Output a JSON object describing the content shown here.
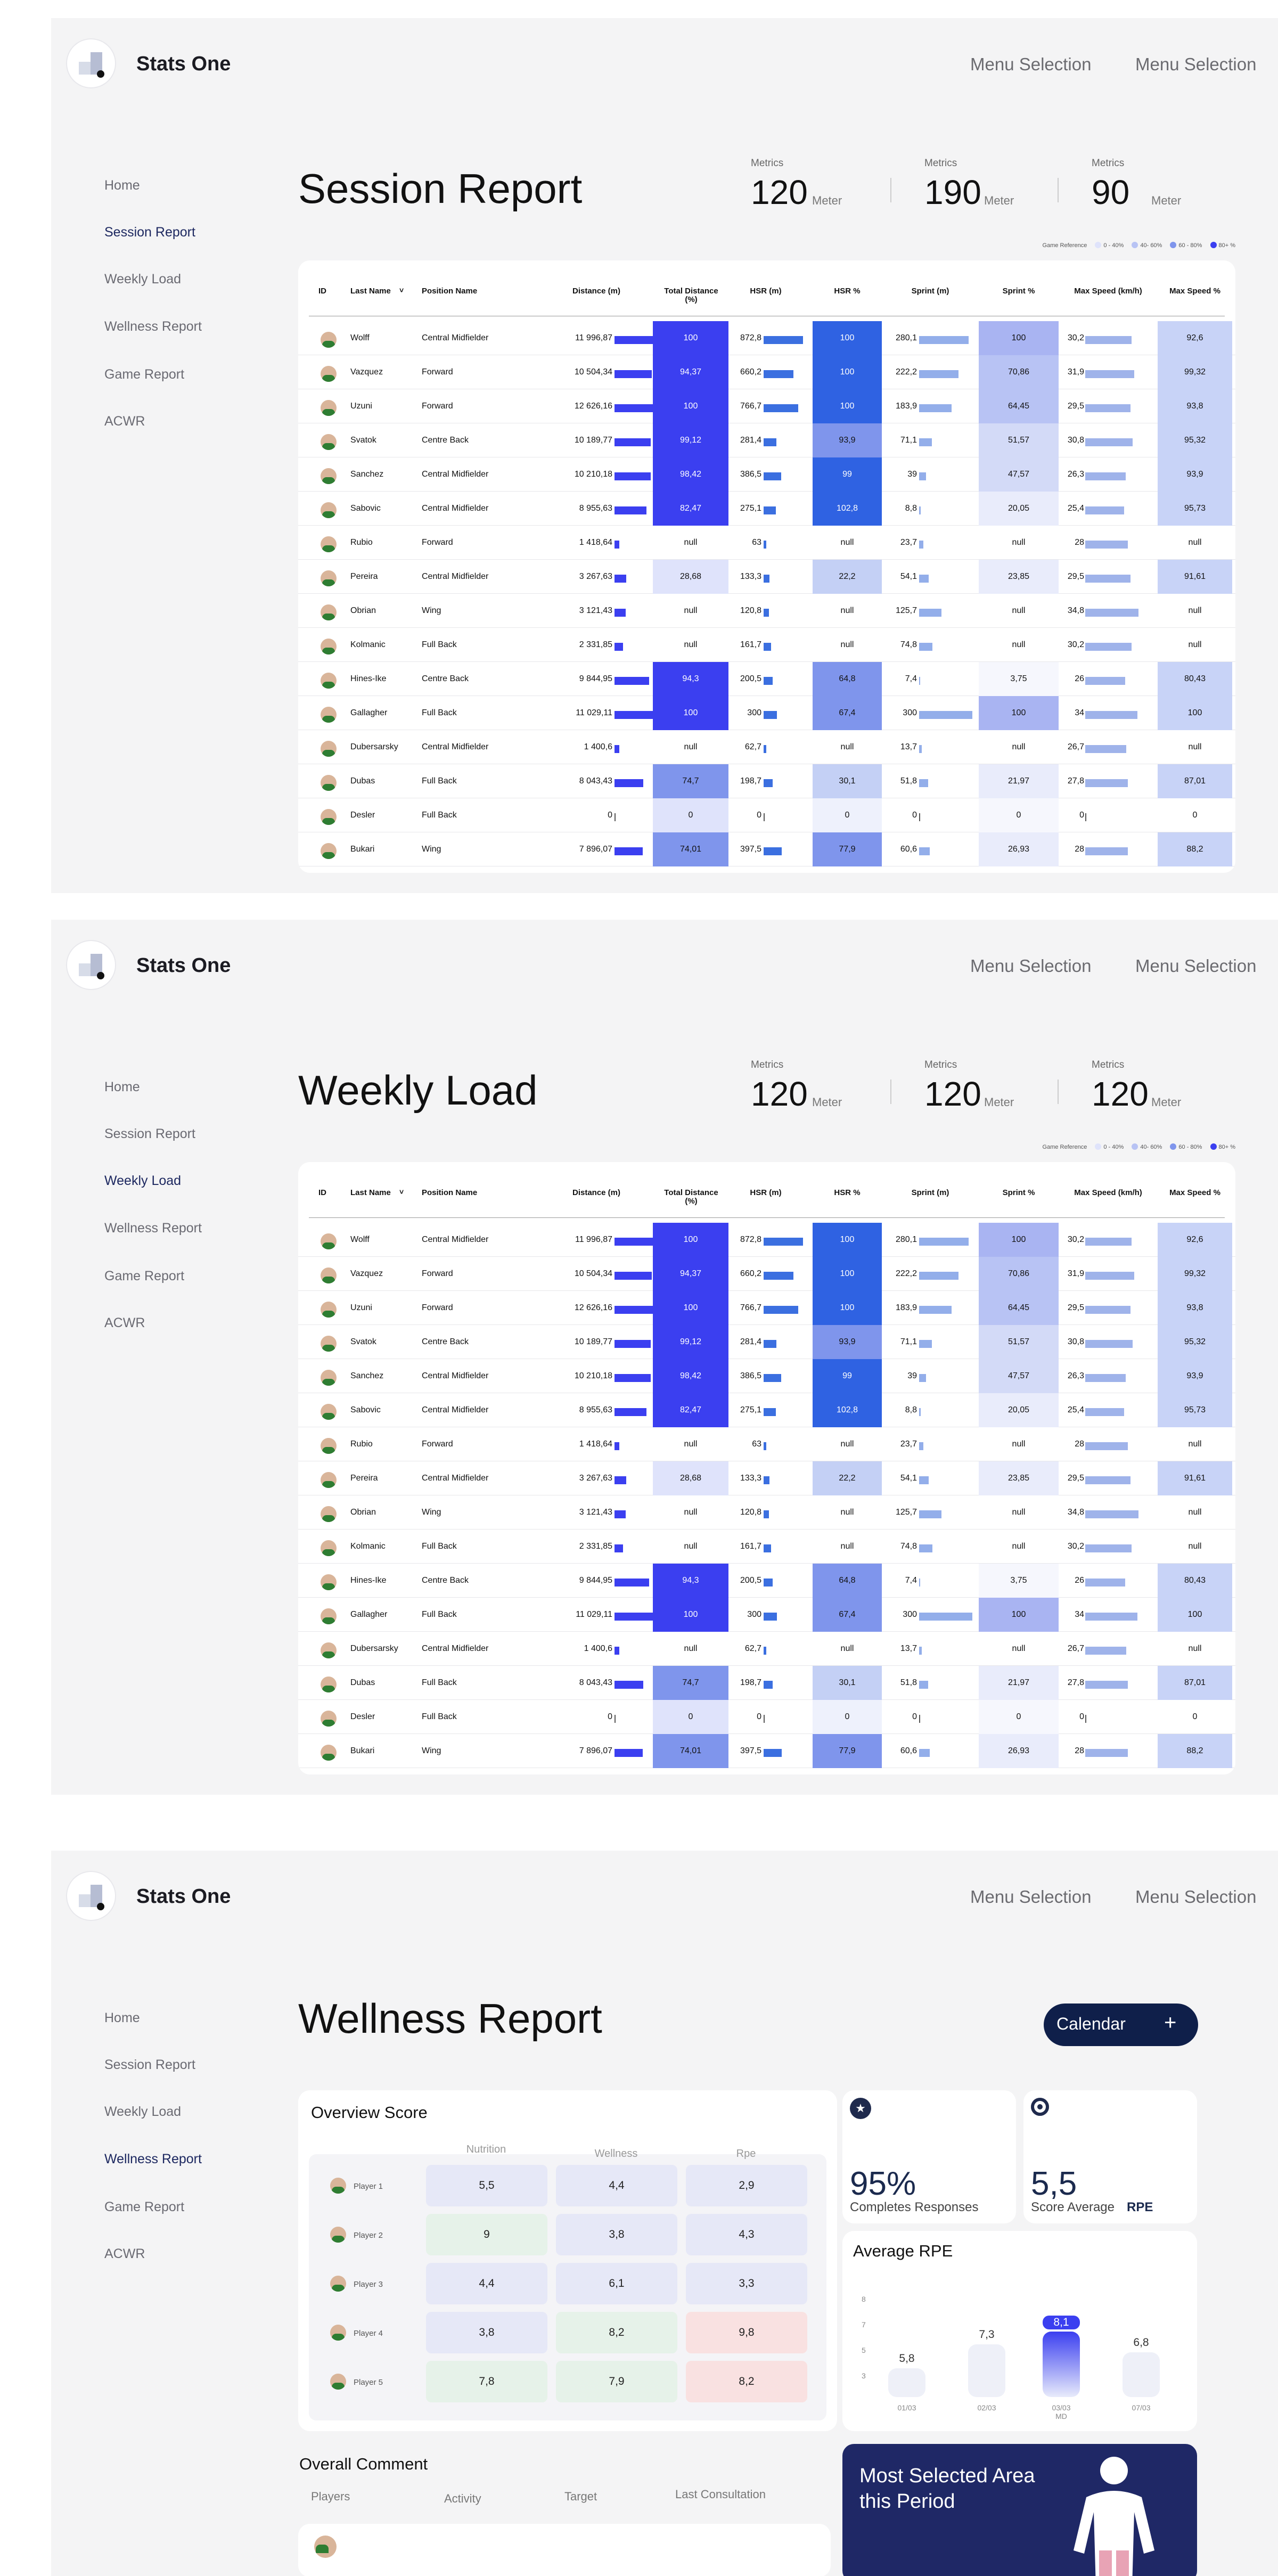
{
  "app": {
    "brand": "Stats One",
    "menu": [
      "Menu Selection",
      "Menu Selection"
    ]
  },
  "nav": [
    "Home",
    "Session Report",
    "Weekly Load",
    "Wellness Report",
    "Game Report",
    "ACWR"
  ],
  "legend": {
    "title": "Game Reference",
    "items": [
      {
        "label": "0 - 40%",
        "color": "#dfe3fb"
      },
      {
        "label": "40- 60%",
        "color": "#b8c3f4"
      },
      {
        "label": "60 - 80%",
        "color": "#7f95ec"
      },
      {
        "label": "80+ %",
        "color": "#3b3ff0"
      }
    ]
  },
  "columns": [
    "ID",
    "Last Name",
    "Position Name",
    "Distance (m)",
    "Total Distance (%)",
    "HSR (m)",
    "HSR %",
    "Sprint (m)",
    "Sprint %",
    "Max Speed (km/h)",
    "Max Speed %"
  ],
  "sort_indicator": "˅",
  "players": [
    {
      "name": "Wolff",
      "pos": "Central Midfielder",
      "dist": "11 996,87",
      "distv": 11996.87,
      "tdp": "100",
      "tdpv": 100,
      "hsr": "872,8",
      "hsrv": 872.8,
      "hsrp": "100",
      "hsrpv": 100,
      "spr": "280,1",
      "sprv": 280.1,
      "sprp": "100",
      "sprpv": 100,
      "ms": "30,2",
      "msv": 30.2,
      "msp": "92,6",
      "mspv": 92.6
    },
    {
      "name": "Vazquez",
      "pos": "Forward",
      "dist": "10 504,34",
      "distv": 10504.34,
      "tdp": "94,37",
      "tdpv": 94.37,
      "hsr": "660,2",
      "hsrv": 660.2,
      "hsrp": "100",
      "hsrpv": 100,
      "spr": "222,2",
      "sprv": 222.2,
      "sprp": "70,86",
      "sprpv": 70.86,
      "ms": "31,9",
      "msv": 31.9,
      "msp": "99,32",
      "mspv": 99.32
    },
    {
      "name": "Uzuni",
      "pos": "Forward",
      "dist": "12 626,16",
      "distv": 12626.16,
      "tdp": "100",
      "tdpv": 100,
      "hsr": "766,7",
      "hsrv": 766.7,
      "hsrp": "100",
      "hsrpv": 100,
      "spr": "183,9",
      "sprv": 183.9,
      "sprp": "64,45",
      "sprpv": 64.45,
      "ms": "29,5",
      "msv": 29.5,
      "msp": "93,8",
      "mspv": 93.8
    },
    {
      "name": "Svatok",
      "pos": "Centre Back",
      "dist": "10 189,77",
      "distv": 10189.77,
      "tdp": "99,12",
      "tdpv": 99.12,
      "hsr": "281,4",
      "hsrv": 281.4,
      "hsrp": "93,9",
      "hsrpv": 93.9,
      "spr": "71,1",
      "sprv": 71.1,
      "sprp": "51,57",
      "sprpv": 51.57,
      "ms": "30,8",
      "msv": 30.8,
      "msp": "95,32",
      "mspv": 95.32
    },
    {
      "name": "Sanchez",
      "pos": "Central Midfielder",
      "dist": "10 210,18",
      "distv": 10210.18,
      "tdp": "98,42",
      "tdpv": 98.42,
      "hsr": "386,5",
      "hsrv": 386.5,
      "hsrp": "99",
      "hsrpv": 99,
      "spr": "39",
      "sprv": 39,
      "sprp": "47,57",
      "sprpv": 47.57,
      "ms": "26,3",
      "msv": 26.3,
      "msp": "93,9",
      "mspv": 93.9
    },
    {
      "name": "Sabovic",
      "pos": "Central Midfielder",
      "dist": "8 955,63",
      "distv": 8955.63,
      "tdp": "82,47",
      "tdpv": 82.47,
      "hsr": "275,1",
      "hsrv": 275.1,
      "hsrp": "102,8",
      "hsrpv": 102.8,
      "spr": "8,8",
      "sprv": 8.8,
      "sprp": "20,05",
      "sprpv": 20.05,
      "ms": "25,4",
      "msv": 25.4,
      "msp": "95,73",
      "mspv": 95.73
    },
    {
      "name": "Rubio",
      "pos": "Forward",
      "dist": "1 418,64",
      "distv": 1418.64,
      "tdp": "null",
      "tdpv": null,
      "hsr": "63",
      "hsrv": 63,
      "hsrp": "null",
      "hsrpv": null,
      "spr": "23,7",
      "sprv": 23.7,
      "sprp": "null",
      "sprpv": null,
      "ms": "28",
      "msv": 28,
      "msp": "null",
      "mspv": null
    },
    {
      "name": "Pereira",
      "pos": "Central Midfielder",
      "dist": "3 267,63",
      "distv": 3267.63,
      "tdp": "28,68",
      "tdpv": 28.68,
      "hsr": "133,3",
      "hsrv": 133.3,
      "hsrp": "22,2",
      "hsrpv": 22.2,
      "spr": "54,1",
      "sprv": 54.1,
      "sprp": "23,85",
      "sprpv": 23.85,
      "ms": "29,5",
      "msv": 29.5,
      "msp": "91,61",
      "mspv": 91.61
    },
    {
      "name": "Obrian",
      "pos": "Wing",
      "dist": "3 121,43",
      "distv": 3121.43,
      "tdp": "null",
      "tdpv": null,
      "hsr": "120,8",
      "hsrv": 120.8,
      "hsrp": "null",
      "hsrpv": null,
      "spr": "125,7",
      "sprv": 125.7,
      "sprp": "null",
      "sprpv": null,
      "ms": "34,8",
      "msv": 34.8,
      "msp": "null",
      "mspv": null
    },
    {
      "name": "Kolmanic",
      "pos": "Full Back",
      "dist": "2 331,85",
      "distv": 2331.85,
      "tdp": "null",
      "tdpv": null,
      "hsr": "161,7",
      "hsrv": 161.7,
      "hsrp": "null",
      "hsrpv": null,
      "spr": "74,8",
      "sprv": 74.8,
      "sprp": "null",
      "sprpv": null,
      "ms": "30,2",
      "msv": 30.2,
      "msp": "null",
      "mspv": null
    },
    {
      "name": "Hines-Ike",
      "pos": "Centre Back",
      "dist": "9 844,95",
      "distv": 9844.95,
      "tdp": "94,3",
      "tdpv": 94.3,
      "hsr": "200,5",
      "hsrv": 200.5,
      "hsrp": "64,8",
      "hsrpv": 64.8,
      "spr": "7,4",
      "sprv": 7.4,
      "sprp": "3,75",
      "sprpv": 3.75,
      "ms": "26",
      "msv": 26,
      "msp": "80,43",
      "mspv": 80.43
    },
    {
      "name": "Gallagher",
      "pos": "Full Back",
      "dist": "11 029,11",
      "distv": 11029.11,
      "tdp": "100",
      "tdpv": 100,
      "hsr": "300",
      "hsrv": 300,
      "hsrp": "67,4",
      "hsrpv": 67.4,
      "spr": "300",
      "sprv": 300,
      "sprp": "100",
      "sprpv": 100,
      "ms": "34",
      "msv": 34,
      "msp": "100",
      "mspv": 100
    },
    {
      "name": "Dubersarsky",
      "pos": "Central Midfielder",
      "dist": "1 400,6",
      "distv": 1400.6,
      "tdp": "null",
      "tdpv": null,
      "hsr": "62,7",
      "hsrv": 62.7,
      "hsrp": "null",
      "hsrpv": null,
      "spr": "13,7",
      "sprv": 13.7,
      "sprp": "null",
      "sprpv": null,
      "ms": "26,7",
      "msv": 26.7,
      "msp": "null",
      "mspv": null
    },
    {
      "name": "Dubas",
      "pos": "Full Back",
      "dist": "8 043,43",
      "distv": 8043.43,
      "tdp": "74,7",
      "tdpv": 74.7,
      "hsr": "198,7",
      "hsrv": 198.7,
      "hsrp": "30,1",
      "hsrpv": 30.1,
      "spr": "51,8",
      "sprv": 51.8,
      "sprp": "21,97",
      "sprpv": 21.97,
      "ms": "27,8",
      "msv": 27.8,
      "msp": "87,01",
      "mspv": 87.01
    },
    {
      "name": "Desler",
      "pos": "Full Back",
      "dist": "0",
      "distv": 0,
      "tdp": "0",
      "tdpv": 0,
      "hsr": "0",
      "hsrv": 0,
      "hsrp": "0",
      "hsrpv": 0,
      "spr": "0",
      "sprv": 0,
      "sprp": "0",
      "sprpv": 0,
      "ms": "0",
      "msv": 0,
      "msp": "0",
      "mspv": 0
    },
    {
      "name": "Bukari",
      "pos": "Wing",
      "dist": "7 896,07",
      "distv": 7896.07,
      "tdp": "74,01",
      "tdpv": 74.01,
      "hsr": "397,5",
      "hsrv": 397.5,
      "hsrp": "77,9",
      "hsrpv": 77.9,
      "spr": "60,6",
      "sprv": 60.6,
      "sprp": "26,93",
      "sprpv": 26.93,
      "ms": "28",
      "msv": 28,
      "msp": "88,2",
      "mspv": 88.2
    }
  ],
  "session": {
    "title": "Session Report",
    "metrics": [
      {
        "label": "Metrics",
        "value": "120",
        "unit": "Meter"
      },
      {
        "label": "Metrics",
        "value": "190",
        "unit": "Meter"
      },
      {
        "label": "Metrics",
        "value": "90",
        "unit": "Meter"
      }
    ]
  },
  "weekly": {
    "title": "Weekly Load",
    "metrics": [
      {
        "label": "Metrics",
        "value": "120",
        "unit": "Meter"
      },
      {
        "label": "Metrics",
        "value": "120",
        "unit": "Meter"
      },
      {
        "label": "Metrics",
        "value": "120",
        "unit": "Meter"
      }
    ]
  },
  "wellness": {
    "title": "Wellness Report",
    "calendar_label": "Calendar",
    "calendar_plus": "+",
    "overview": {
      "title": "Overview Score",
      "headers": [
        "Nutrition",
        "Wellness",
        "Rpe"
      ],
      "rows": [
        {
          "player": "Player 1",
          "vals": [
            "5,5",
            "4,4",
            "2,9"
          ]
        },
        {
          "player": "Player 2",
          "vals": [
            "9",
            "3,8",
            "4,3"
          ]
        },
        {
          "player": "Player 3",
          "vals": [
            "4,4",
            "6,1",
            "3,3"
          ]
        },
        {
          "player": "Player 4",
          "vals": [
            "3,8",
            "8,2",
            "9,8"
          ]
        },
        {
          "player": "Player 5",
          "vals": [
            "7,8",
            "7,9",
            "8,2"
          ]
        }
      ],
      "colors": [
        [
          "#e6e8f7",
          "#e6e8f7",
          "#e6e8f7"
        ],
        [
          "#e6f2e9",
          "#e6e8f7",
          "#e6e8f7"
        ],
        [
          "#e6e8f7",
          "#e6e8f7",
          "#e6e8f7"
        ],
        [
          "#e6e8f7",
          "#e6f2e9",
          "#f9e1e1"
        ],
        [
          "#e6f2e9",
          "#e6f2e9",
          "#f9e1e1"
        ]
      ]
    },
    "stat1": {
      "value": "95%",
      "label": "Completes Responses"
    },
    "stat2": {
      "value": "5,5",
      "label": "Score Average",
      "tag": "RPE"
    },
    "rpe": {
      "title": "Average RPE",
      "yticks": [
        "8",
        "7",
        "5",
        "3"
      ],
      "bars": [
        {
          "value": "5,8",
          "v": 5.8,
          "x": "01/03"
        },
        {
          "value": "7,3",
          "v": 7.3,
          "x": "02/03"
        },
        {
          "value": "8,1",
          "v": 8.1,
          "x": "03/03",
          "x2": "MD"
        },
        {
          "value": "6,8",
          "v": 6.8,
          "x": "07/03"
        }
      ]
    },
    "comment": {
      "title": "Overall Comment",
      "headers": [
        "Players",
        "Activity",
        "Target",
        "Last Consultation"
      ]
    },
    "area": {
      "title": "Most Selected Area this Period"
    }
  }
}
